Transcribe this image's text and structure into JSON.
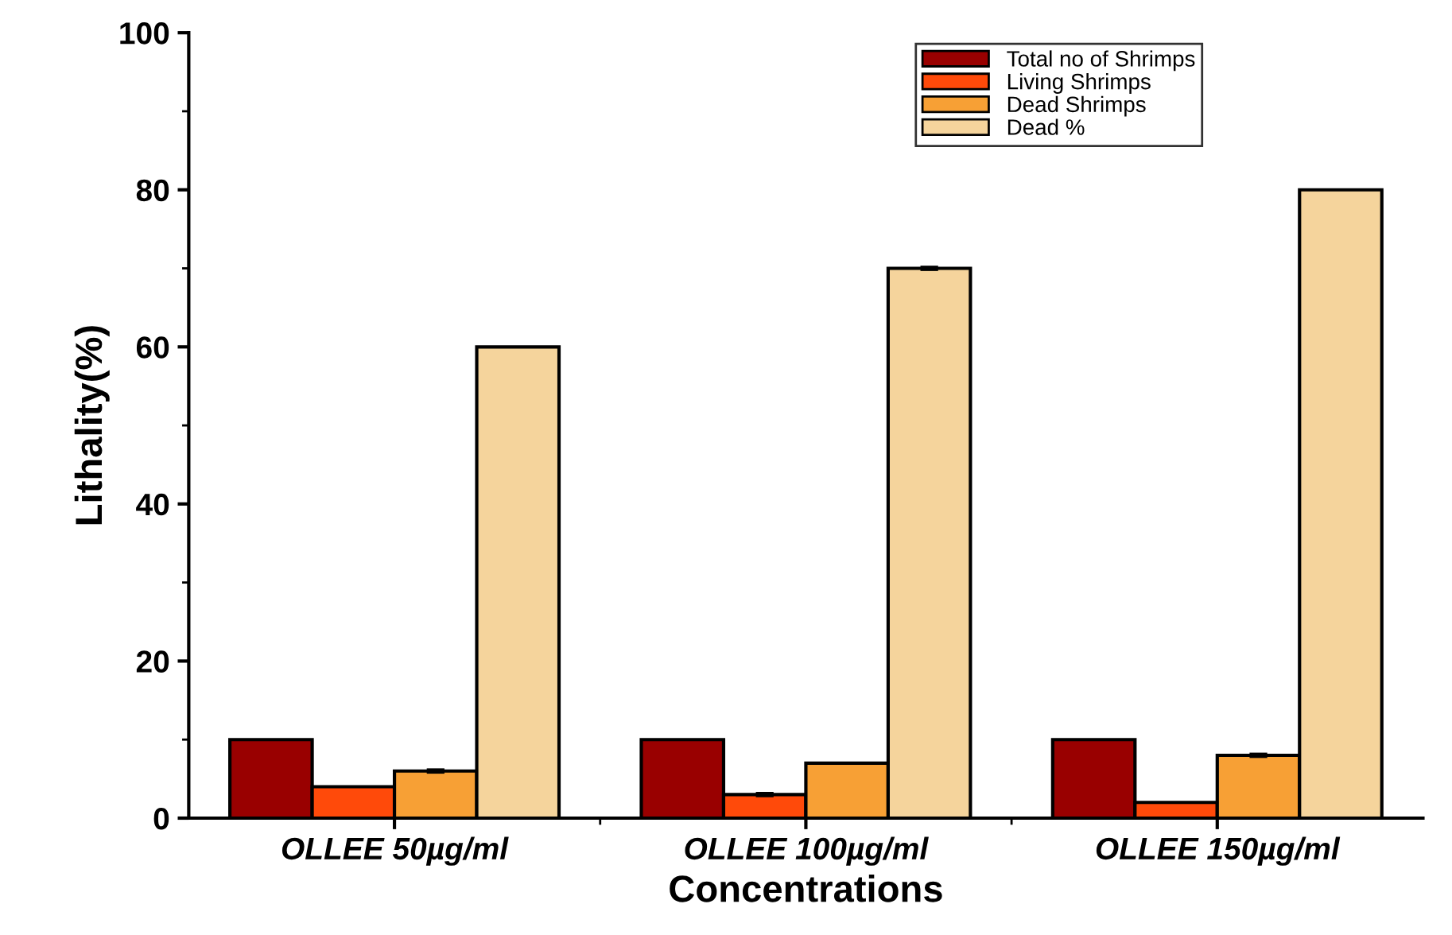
{
  "chart_data": {
    "type": "bar",
    "xlabel": "Concentrations",
    "ylabel": "Lithality(%)",
    "categories": [
      "OLLEE 50µg/ml",
      "OLLEE 100µg/ml",
      "OLLEE 150µg/ml"
    ],
    "series": [
      {
        "name": "Total no of Shrimps",
        "color": "#990000",
        "values": [
          10,
          10,
          10
        ]
      },
      {
        "name": "Living Shrimps",
        "color": "#ff4a0a",
        "values": [
          4,
          3,
          2
        ],
        "errors": [
          null,
          0.2,
          null
        ]
      },
      {
        "name": "Dead Shrimps",
        "color": "#f7a035",
        "values": [
          6,
          7,
          8
        ],
        "errors": [
          0.2,
          null,
          0.2
        ]
      },
      {
        "name": "Dead %",
        "color": "#f5d49c",
        "values": [
          60,
          70,
          80
        ],
        "errors": [
          null,
          0.2,
          null
        ]
      }
    ],
    "ylim": [
      0,
      100
    ],
    "yticks": [
      0,
      20,
      40,
      60,
      80,
      100
    ],
    "grid": false,
    "legend": "top right"
  }
}
